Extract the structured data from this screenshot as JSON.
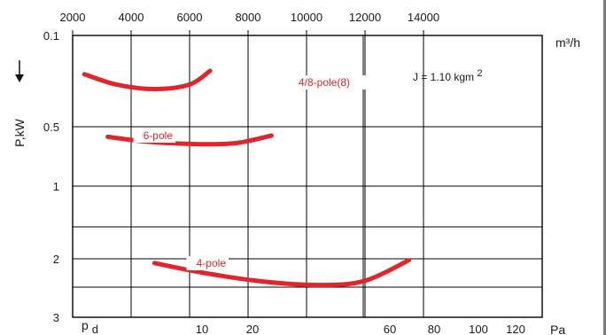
{
  "chart_data": {
    "type": "line",
    "title": "",
    "x_axis": {
      "label": "m³/h",
      "range": [
        0,
        14000
      ],
      "ticks": [
        2000,
        4000,
        6000,
        8000,
        10000,
        12000,
        14000
      ],
      "tick_labels": [
        "2000",
        "4000",
        "6000",
        "8000",
        "10000",
        "12000",
        "14000"
      ],
      "position": "top",
      "grid": true
    },
    "y_axis": {
      "label": "P,kW",
      "range": [
        0.1,
        3
      ],
      "direction": "downward",
      "ticks": [
        0.1,
        0.5,
        1,
        2,
        3
      ],
      "tick_labels": [
        "0.1",
        "0.5",
        "1",
        "2",
        "3"
      ],
      "extra_grid": [
        1.5,
        2.4
      ]
    },
    "pressure_axis": {
      "label": "Pa",
      "symbol": "p",
      "symbol_subscript": "d",
      "ticks": [
        10,
        20,
        60,
        80,
        100,
        120
      ],
      "tick_labels": [
        "10",
        "20",
        "60",
        "80",
        "100",
        "120"
      ]
    },
    "annotation": {
      "text": "J = 1.10 kgm",
      "superscript": "2"
    },
    "series_color": "#e0262a",
    "series": [
      {
        "name": "4/8-pole(8)",
        "points": [
          [
            2400,
            0.27
          ],
          [
            3500,
            0.315
          ],
          [
            4800,
            0.335
          ],
          [
            6000,
            0.315
          ],
          [
            6700,
            0.255
          ]
        ]
      },
      {
        "name": "6-pole",
        "points": [
          [
            3200,
            0.585
          ],
          [
            4500,
            0.625
          ],
          [
            6000,
            0.645
          ],
          [
            7500,
            0.64
          ],
          [
            8800,
            0.575
          ]
        ]
      },
      {
        "name": "4-pole",
        "points": [
          [
            4800,
            2.06
          ],
          [
            6500,
            2.2
          ],
          [
            8500,
            2.32
          ],
          [
            10500,
            2.37
          ],
          [
            12000,
            2.31
          ],
          [
            13500,
            2.02
          ]
        ]
      }
    ]
  }
}
